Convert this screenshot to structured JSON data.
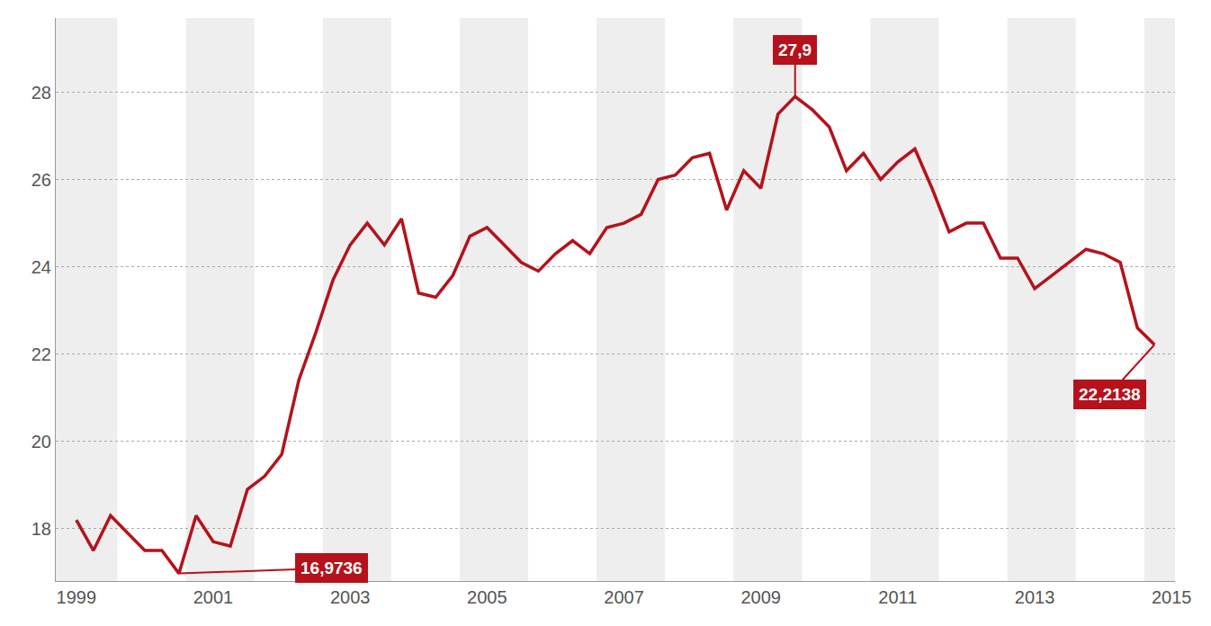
{
  "chart_data": {
    "type": "line",
    "color": "#b5121b",
    "x": [
      1999.0,
      1999.25,
      1999.5,
      1999.75,
      2000.0,
      2000.25,
      2000.5,
      2000.75,
      2001.0,
      2001.25,
      2001.5,
      2001.75,
      2002.0,
      2002.25,
      2002.5,
      2002.75,
      2003.0,
      2003.25,
      2003.5,
      2003.75,
      2004.0,
      2004.25,
      2004.5,
      2004.75,
      2005.0,
      2005.25,
      2005.5,
      2005.75,
      2006.0,
      2006.25,
      2006.5,
      2006.75,
      2007.0,
      2007.25,
      2007.5,
      2007.75,
      2008.0,
      2008.25,
      2008.5,
      2008.75,
      2009.0,
      2009.25,
      2009.5,
      2009.75,
      2010.0,
      2010.25,
      2010.5,
      2010.75,
      2011.0,
      2011.25,
      2011.5,
      2011.75,
      2012.0,
      2012.25,
      2012.5,
      2012.75,
      2013.0,
      2013.25,
      2013.5,
      2013.75,
      2014.0,
      2014.25,
      2014.5,
      2014.75
    ],
    "values": [
      18.2,
      17.5,
      18.3,
      17.9,
      17.5,
      17.5,
      16.9736,
      18.3,
      17.7,
      17.6,
      18.9,
      19.2,
      19.7,
      21.4,
      22.5,
      23.7,
      24.5,
      25.0,
      24.5,
      25.1,
      23.4,
      23.3,
      23.8,
      24.7,
      24.9,
      24.5,
      24.1,
      23.9,
      24.3,
      24.6,
      24.3,
      24.9,
      25.0,
      25.2,
      26.0,
      26.1,
      26.5,
      26.6,
      25.3,
      26.2,
      25.8,
      27.5,
      27.9,
      27.6,
      27.2,
      26.2,
      26.6,
      26.0,
      26.4,
      26.7,
      25.8,
      24.8,
      25.0,
      25.0,
      24.2,
      24.2,
      23.5,
      23.8,
      24.1,
      24.4,
      24.3,
      24.1,
      22.6,
      22.2138
    ],
    "xlim": [
      1998.7,
      2015.05
    ],
    "xticks": [
      1999,
      2001,
      2003,
      2005,
      2007,
      2009,
      2011,
      2013,
      2015
    ],
    "ylim": [
      16.8,
      29.7
    ],
    "yticks": [
      18,
      20,
      22,
      24,
      26,
      28
    ],
    "grid": true,
    "annotations": [
      {
        "text": "27,9",
        "x": 2009.5,
        "y": 27.9
      },
      {
        "text": "16,9736",
        "x": 2000.5,
        "y": 16.9736
      },
      {
        "text": "22,2138",
        "x": 2014.75,
        "y": 22.2138
      }
    ]
  }
}
